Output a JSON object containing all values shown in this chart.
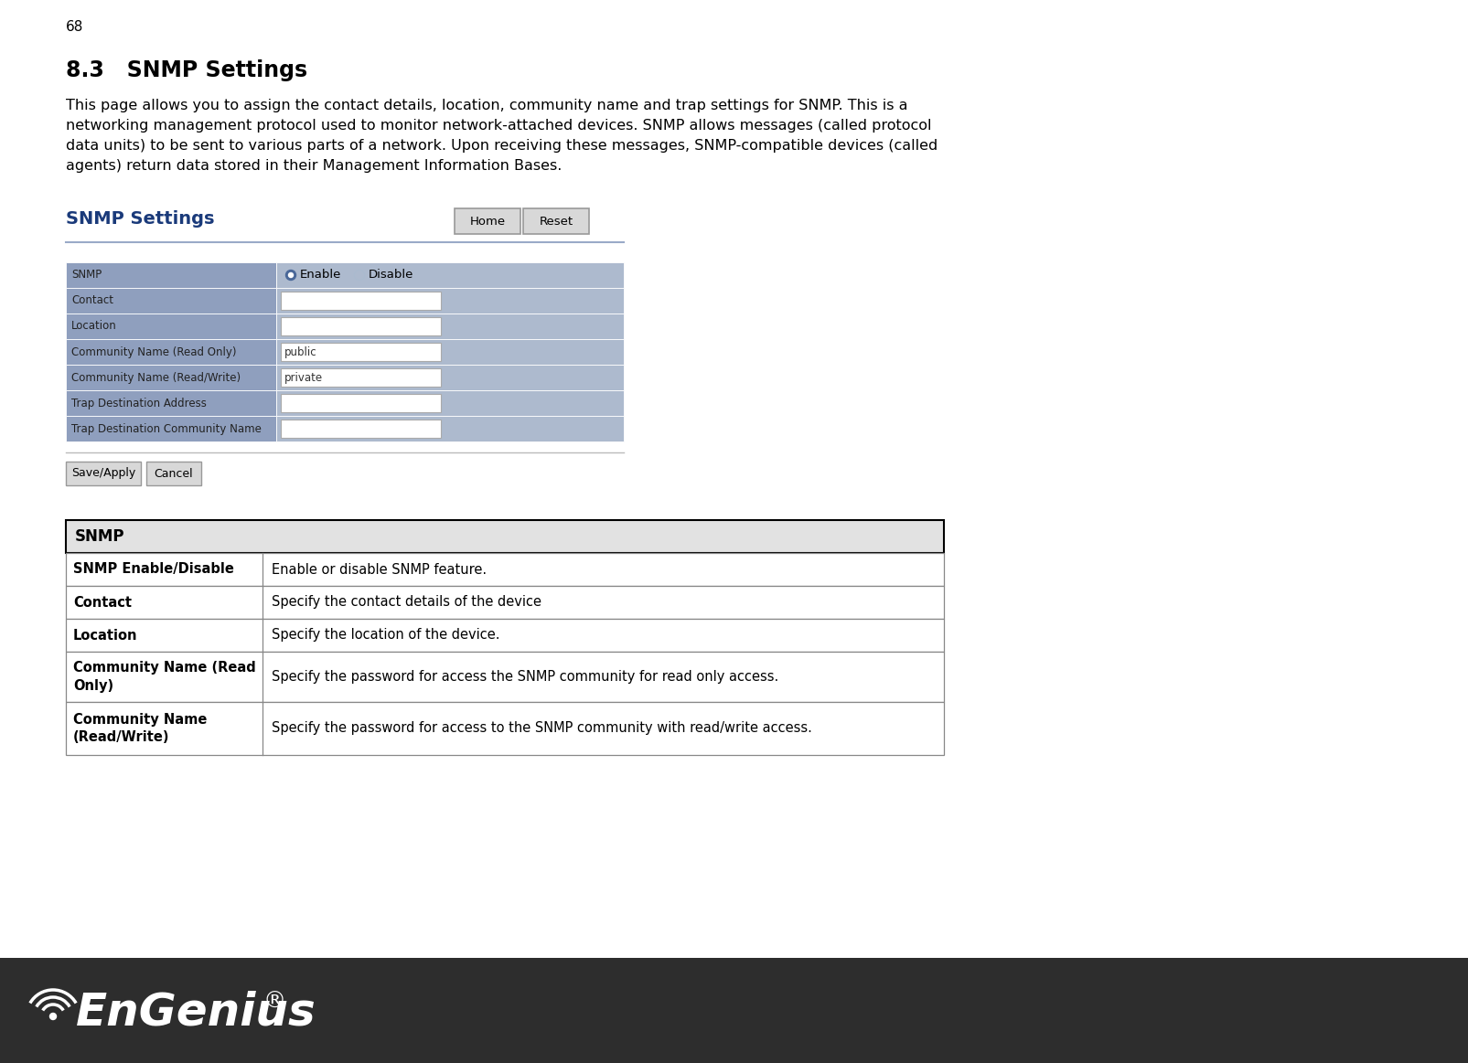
{
  "page_number": "68",
  "section_title": "8.3   SNMP Settings",
  "intro_lines": [
    "This page allows you to assign the contact details, location, community name and trap settings for SNMP. This is a",
    "networking management protocol used to monitor network-attached devices. SNMP allows messages (called protocol",
    "data units) to be sent to various parts of a network. Upon receiving these messages, SNMP-compatible devices (called",
    "agents) return data stored in their Management Information Bases."
  ],
  "panel_title": "SNMP Settings",
  "form_rows": [
    {
      "label": "SNMP",
      "type": "radio",
      "value": ""
    },
    {
      "label": "Contact",
      "type": "input",
      "value": ""
    },
    {
      "label": "Location",
      "type": "input",
      "value": ""
    },
    {
      "label": "Community Name (Read Only)",
      "type": "input",
      "value": "public"
    },
    {
      "label": "Community Name (Read/Write)",
      "type": "input",
      "value": "private"
    },
    {
      "label": "Trap Destination Address",
      "type": "input",
      "value": ""
    },
    {
      "label": "Trap Destination Community Name",
      "type": "input",
      "value": ""
    }
  ],
  "table_header": "SNMP",
  "table_rows": [
    {
      "term": "SNMP Enable/Disable",
      "desc": "Enable or disable SNMP feature."
    },
    {
      "term": "Contact",
      "desc": "Specify the contact details of the device"
    },
    {
      "term": "Location",
      "desc": "Specify the location of the device."
    },
    {
      "term": "Community Name (Read\nOnly)",
      "desc": "Specify the password for access the SNMP community for read only access."
    },
    {
      "term": "Community Name\n(Read/Write)",
      "desc": "Specify the password for access to the SNMP community with read/write access."
    }
  ],
  "bg_color": "#ffffff",
  "form_label_bg": "#8f9fbe",
  "form_value_bg": "#adbace",
  "table_header_bg": "#e2e2e2",
  "footer_bg": "#2d2d2d",
  "panel_title_color": "#1a3a7a",
  "panel_line_color": "#9aaac8",
  "button_bg": "#d8d8d8",
  "button_border": "#999999",
  "input_bg": "#ffffff",
  "input_border": "#aaaaaa",
  "form_text_color": "#222222",
  "table_border_color": "#888888",
  "table_header_border": "#000000"
}
